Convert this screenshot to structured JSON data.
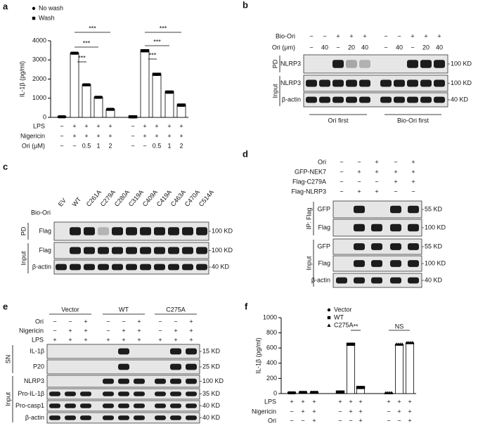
{
  "chart_data": [
    {
      "type": "bar",
      "panel": "a",
      "ylabel": "IL-1β (pg/ml)",
      "ylim": [
        0,
        4000
      ],
      "yticks": [
        0,
        1000,
        2000,
        3000,
        4000
      ],
      "series": [
        {
          "name": "No wash",
          "marker": "circle",
          "color": "#000000",
          "values": [
            30,
            3350,
            1700,
            1050,
            420
          ]
        },
        {
          "name": "Wash",
          "marker": "square",
          "color": "#000000",
          "values": [
            30,
            3480,
            2250,
            1320,
            640
          ]
        }
      ],
      "conditions": [
        {
          "label": "LPS",
          "values": [
            "−",
            "+",
            "+",
            "+",
            "+",
            "−",
            "+",
            "+",
            "+",
            "+"
          ]
        },
        {
          "label": "Nigericin",
          "values": [
            "−",
            "+",
            "+",
            "+",
            "+",
            "−",
            "+",
            "+",
            "+",
            "+"
          ]
        },
        {
          "label": "Ori (μM)",
          "values": [
            "−",
            "−",
            "0.5",
            "1",
            "2",
            "−",
            "−",
            "0.5",
            "1",
            "2"
          ]
        }
      ],
      "annotations": [
        {
          "text": "***"
        },
        {
          "text": "***"
        },
        {
          "text": "***"
        },
        {
          "text": "***"
        },
        {
          "text": "***"
        },
        {
          "text": "***"
        }
      ]
    },
    {
      "type": "bar",
      "panel": "f",
      "ylabel": "IL-1β (pg/ml)",
      "ylim": [
        0,
        1000
      ],
      "yticks": [
        0,
        200,
        400,
        600,
        800,
        1000
      ],
      "series": [
        {
          "name": "Vector",
          "marker": "circle",
          "color": "#000000",
          "values": [
            10,
            15,
            15
          ]
        },
        {
          "name": "WT",
          "marker": "square",
          "color": "#000000",
          "values": [
            20,
            650,
            80
          ]
        },
        {
          "name": "C275A",
          "marker": "triangle",
          "color": "#000000",
          "values": [
            10,
            650,
            670
          ]
        }
      ],
      "conditions": [
        {
          "label": "LPS",
          "values": [
            "+",
            "+",
            "+",
            "+",
            "+",
            "+",
            "+",
            "+",
            "+"
          ]
        },
        {
          "label": "Nigericin",
          "values": [
            "−",
            "+",
            "+",
            "−",
            "+",
            "+",
            "−",
            "+",
            "+"
          ]
        },
        {
          "label": "Ori",
          "values": [
            "−",
            "−",
            "+",
            "−",
            "−",
            "+",
            "−",
            "−",
            "+"
          ]
        }
      ],
      "annotations": [
        {
          "text": "**"
        },
        {
          "text": "NS"
        }
      ]
    }
  ],
  "blots": [
    {
      "panel": "b",
      "header_rows": [
        {
          "label": "Bio-Ori",
          "values": [
            "−",
            "−",
            "+",
            "+",
            "+",
            "−",
            "−",
            "+",
            "+",
            "+"
          ]
        },
        {
          "label": "Ori (μm)",
          "values": [
            "−",
            "40",
            "−",
            "20",
            "40",
            "−",
            "40",
            "−",
            "20",
            "40"
          ]
        }
      ],
      "groups": [
        {
          "label": "PD",
          "rows": [
            {
              "label": "NLRP3",
              "marker": "100 KD"
            }
          ]
        },
        {
          "label": "Input",
          "rows": [
            {
              "label": "NLRP3",
              "marker": "100 KD"
            },
            {
              "label": "β-actin",
              "marker": "40 KD"
            }
          ]
        }
      ],
      "footer": [
        "Ori first",
        "Bio-Ori first"
      ]
    },
    {
      "panel": "c",
      "lanes": [
        "EV",
        "WT",
        "C261A",
        "C279A",
        "C280A",
        "C319A",
        "C409A",
        "C419A",
        "C463A",
        "C470A",
        "C514A"
      ],
      "header_rows": [
        {
          "label": "Bio-Ori"
        }
      ],
      "groups": [
        {
          "label": "PD",
          "rows": [
            {
              "label": "Flag",
              "marker": "100 KD"
            }
          ]
        },
        {
          "label": "Input",
          "rows": [
            {
              "label": "Flag",
              "marker": "100 KD"
            },
            {
              "label": "β-actin",
              "marker": "40 KD"
            }
          ]
        }
      ]
    },
    {
      "panel": "d",
      "header_rows": [
        {
          "label": "Ori",
          "values": [
            "−",
            "−",
            "+",
            "−",
            "+"
          ]
        },
        {
          "label": "GFP-NEK7",
          "values": [
            "−",
            "+",
            "+",
            "+",
            "+"
          ]
        },
        {
          "label": "Flag-C279A",
          "values": [
            "−",
            "−",
            "−",
            "+",
            "+"
          ]
        },
        {
          "label": "Flag-NLRP3",
          "values": [
            "−",
            "+",
            "+",
            "−",
            "−"
          ]
        }
      ],
      "groups": [
        {
          "label": "IP: Flag",
          "rows": [
            {
              "label": "GFP",
              "marker": "55 KD"
            },
            {
              "label": "Flag",
              "marker": "100 KD"
            }
          ]
        },
        {
          "label": "Input",
          "rows": [
            {
              "label": "GFP",
              "marker": "55 KD"
            },
            {
              "label": "Flag",
              "marker": "100 KD"
            },
            {
              "label": "β-actin",
              "marker": "40 KD"
            }
          ]
        }
      ]
    },
    {
      "panel": "e",
      "lane_groups": [
        "Vector",
        "WT",
        "C275A"
      ],
      "header_rows": [
        {
          "label": "Ori",
          "values": [
            "−",
            "−",
            "+",
            "−",
            "−",
            "+",
            "−",
            "−",
            "+"
          ]
        },
        {
          "label": "Nigericin",
          "values": [
            "−",
            "+",
            "+",
            "−",
            "+",
            "+",
            "−",
            "+",
            "+"
          ]
        },
        {
          "label": "LPS",
          "values": [
            "+",
            "+",
            "+",
            "+",
            "+",
            "+",
            "+",
            "+",
            "+"
          ]
        }
      ],
      "groups": [
        {
          "label": "SN",
          "rows": [
            {
              "label": "IL-1β",
              "marker": "15 KD"
            },
            {
              "label": "P20",
              "marker": "25 KD"
            }
          ]
        },
        {
          "label": "Input",
          "rows": [
            {
              "label": "NLRP3",
              "marker": "100 KD"
            },
            {
              "label": "Pro-IL-1β",
              "marker": "35 KD"
            },
            {
              "label": "Pro-casp1",
              "marker": "40 KD"
            },
            {
              "label": "β-actin",
              "marker": "40 KD"
            }
          ]
        }
      ]
    }
  ]
}
